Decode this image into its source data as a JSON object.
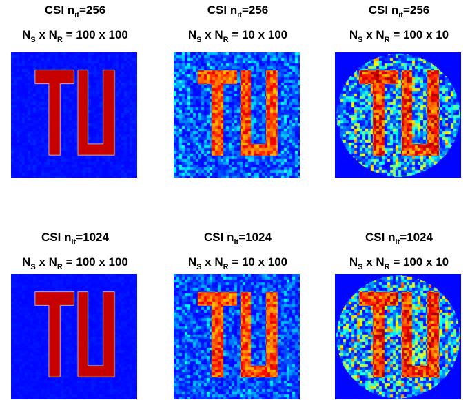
{
  "figure": {
    "panels": [
      {
        "id": "r1c1",
        "algorithm": "CSI",
        "iterations_label": "n",
        "iterations_sub": "it",
        "iterations": "=256",
        "ns_label": "N",
        "ns_sub": "S",
        "nr_label": " x N",
        "nr_sub": "R",
        "config": " = 100 x 100",
        "image": {
          "support": "full",
          "noise": 0.03,
          "letter_fill": "uniform"
        }
      },
      {
        "id": "r1c2",
        "algorithm": "CSI",
        "iterations_label": "n",
        "iterations_sub": "it",
        "iterations": "=256",
        "ns_label": "N",
        "ns_sub": "S",
        "nr_label": " x N",
        "nr_sub": "R",
        "config": " = 10 x 100",
        "image": {
          "support": "full",
          "noise": 0.25,
          "letter_fill": "noisy"
        }
      },
      {
        "id": "r1c3",
        "algorithm": "CSI",
        "iterations_label": "n",
        "iterations_sub": "it",
        "iterations": "=256",
        "ns_label": "N",
        "ns_sub": "S",
        "nr_label": " x N",
        "nr_sub": "R",
        "config": " = 100 x 10",
        "image": {
          "support": "disc",
          "noise": 0.55,
          "letter_fill": "blurred"
        }
      },
      {
        "id": "r2c1",
        "algorithm": "CSI",
        "iterations_label": "n",
        "iterations_sub": "it",
        "iterations": "=1024",
        "ns_label": "N",
        "ns_sub": "S",
        "nr_label": " x N",
        "nr_sub": "R",
        "config": " = 100 x 100",
        "image": {
          "support": "full",
          "noise": 0.02,
          "letter_fill": "uniform"
        }
      },
      {
        "id": "r2c2",
        "algorithm": "CSI",
        "iterations_label": "n",
        "iterations_sub": "it",
        "iterations": "=1024",
        "ns_label": "N",
        "ns_sub": "S",
        "nr_label": " x N",
        "nr_sub": "R",
        "config": " = 10 x 100",
        "image": {
          "support": "full",
          "noise": 0.22,
          "letter_fill": "noisy"
        }
      },
      {
        "id": "r2c3",
        "algorithm": "CSI",
        "iterations_label": "n",
        "iterations_sub": "it",
        "iterations": "=1024",
        "ns_label": "N",
        "ns_sub": "S",
        "nr_label": " x N",
        "nr_sub": "R",
        "config": " = 100 x 10",
        "image": {
          "support": "disc",
          "noise": 0.6,
          "letter_fill": "noisy"
        }
      }
    ],
    "colormap": "jet",
    "colors": {
      "background": "#1f2ea8",
      "letter": "#b0201a",
      "letter_edge": "#c8c8c8",
      "outside": "#ffffff"
    }
  }
}
